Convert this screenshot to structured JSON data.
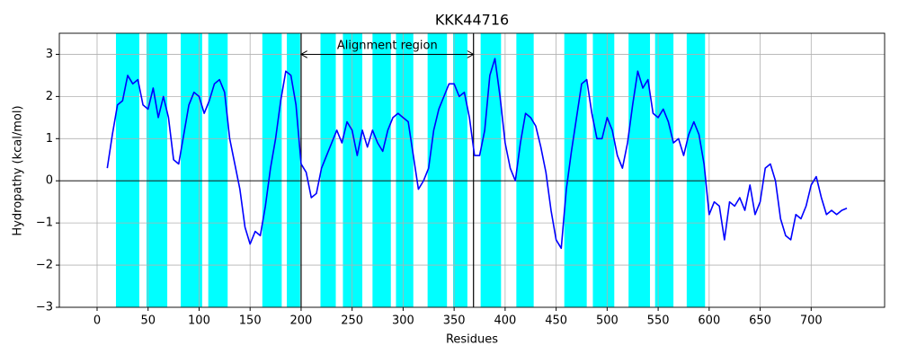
{
  "chart_data": {
    "type": "line",
    "title": "KKK44716",
    "xlabel": "Residues",
    "ylabel": "Hydropathy (kcal/mol)",
    "xlim": [
      -37,
      772
    ],
    "ylim": [
      -3,
      3.5
    ],
    "xticks": [
      0,
      50,
      100,
      150,
      200,
      250,
      300,
      350,
      400,
      450,
      500,
      550,
      600,
      650,
      700
    ],
    "yticks": [
      {
        "value": -3,
        "label": "−3"
      },
      {
        "value": -2,
        "label": "−2"
      },
      {
        "value": -1,
        "label": "−1"
      },
      0,
      1,
      2,
      3
    ],
    "grid": true,
    "reference_line": 0,
    "span_color": "#00ffff",
    "highlight_spans": [
      [
        18.5,
        41.4
      ],
      [
        48.5,
        68.8
      ],
      [
        82,
        103
      ],
      [
        109,
        128
      ],
      [
        162,
        181
      ],
      [
        186,
        199
      ],
      [
        219,
        234
      ],
      [
        241,
        260
      ],
      [
        270,
        288
      ],
      [
        293,
        310
      ],
      [
        324,
        343
      ],
      [
        349,
        363
      ],
      [
        376,
        396
      ],
      [
        411,
        428
      ],
      [
        458,
        480
      ],
      [
        486,
        507
      ],
      [
        521,
        542
      ],
      [
        547,
        565
      ],
      [
        578,
        596
      ]
    ],
    "alignment_region": {
      "label": "Alignment region",
      "range": [
        200,
        369
      ],
      "label_y": 3.2,
      "arrow_y": 3.0
    },
    "x": [
      10,
      15,
      20,
      25,
      30,
      35,
      40,
      45,
      50,
      55,
      60,
      65,
      70,
      75,
      80,
      85,
      90,
      95,
      100,
      105,
      110,
      115,
      120,
      125,
      130,
      135,
      140,
      145,
      150,
      155,
      160,
      165,
      170,
      175,
      180,
      185,
      190,
      195,
      200,
      205,
      210,
      215,
      220,
      225,
      230,
      235,
      240,
      245,
      250,
      255,
      260,
      265,
      270,
      275,
      280,
      285,
      290,
      295,
      300,
      305,
      310,
      315,
      320,
      325,
      330,
      335,
      340,
      345,
      350,
      355,
      360,
      365,
      370,
      375,
      380,
      385,
      390,
      395,
      400,
      405,
      410,
      415,
      420,
      425,
      430,
      435,
      440,
      445,
      450,
      455,
      460,
      465,
      470,
      475,
      480,
      485,
      490,
      495,
      500,
      505,
      510,
      515,
      520,
      525,
      530,
      535,
      540,
      545,
      550,
      555,
      560,
      565,
      570,
      575,
      580,
      585,
      590,
      595,
      600,
      605,
      610,
      615,
      620,
      625,
      630,
      635,
      640,
      645,
      650,
      655,
      660,
      665,
      670,
      675,
      680,
      685,
      690,
      695,
      700,
      705,
      710,
      715,
      720,
      725,
      730,
      735
    ],
    "series": [
      {
        "color": "#0000ff",
        "values": [
          0.3,
          1.1,
          1.8,
          1.9,
          2.5,
          2.3,
          2.4,
          1.8,
          1.7,
          2.2,
          1.5,
          2.0,
          1.5,
          0.5,
          0.4,
          1.1,
          1.8,
          2.1,
          2.0,
          1.6,
          1.9,
          2.3,
          2.4,
          2.1,
          1.0,
          0.4,
          -0.2,
          -1.1,
          -1.5,
          -1.2,
          -1.3,
          -0.6,
          0.3,
          1.0,
          1.9,
          2.6,
          2.5,
          1.8,
          0.4,
          0.2,
          -0.4,
          -0.3,
          0.3,
          0.6,
          0.9,
          1.2,
          0.9,
          1.4,
          1.2,
          0.6,
          1.2,
          0.8,
          1.2,
          0.9,
          0.7,
          1.2,
          1.5,
          1.6,
          1.5,
          1.4,
          0.6,
          -0.2,
          0.0,
          0.3,
          1.2,
          1.7,
          2.0,
          2.3,
          2.3,
          2.0,
          2.1,
          1.5,
          0.6,
          0.6,
          1.2,
          2.5,
          2.9,
          2.0,
          0.9,
          0.3,
          0.0,
          0.9,
          1.6,
          1.5,
          1.3,
          0.8,
          0.2,
          -0.7,
          -1.4,
          -1.6,
          -0.2,
          0.7,
          1.5,
          2.3,
          2.4,
          1.6,
          1.0,
          1.0,
          1.5,
          1.2,
          0.6,
          0.3,
          0.9,
          1.8,
          2.6,
          2.2,
          2.4,
          1.6,
          1.5,
          1.7,
          1.4,
          0.9,
          1.0,
          0.6,
          1.1,
          1.4,
          1.1,
          0.4,
          -0.8,
          -0.5,
          -0.6,
          -1.4,
          -0.5,
          -0.6,
          -0.4,
          -0.7,
          -0.1,
          -0.8,
          -0.5,
          0.3,
          0.4,
          0.0,
          -0.9,
          -1.3,
          -1.4,
          -0.8,
          -0.9,
          -0.6,
          -0.1,
          0.1,
          -0.4,
          -0.8,
          -0.7,
          -0.8,
          -0.7,
          -0.65
        ]
      }
    ]
  }
}
